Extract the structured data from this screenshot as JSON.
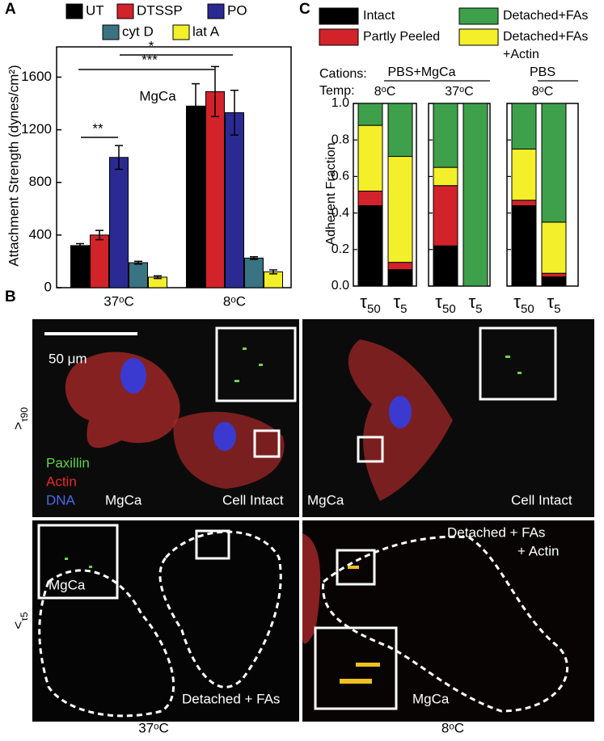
{
  "panel_labels": [
    "A",
    "B",
    "C"
  ],
  "chart_data": [
    {
      "type": "bar",
      "ylabel": "Attachment Strength (dynes/cm²)",
      "categories": [
        "37ᵒC",
        "8ᵒC"
      ],
      "series": [
        {
          "name": "UT",
          "color": "#000000",
          "values": [
            320,
            1380
          ],
          "errors": [
            15,
            170
          ]
        },
        {
          "name": "DTSSP",
          "color": "#d2232a",
          "values": [
            400,
            1490
          ],
          "errors": [
            35,
            190
          ]
        },
        {
          "name": "PO",
          "color": "#2b2a93",
          "values": [
            990,
            1330
          ],
          "errors": [
            90,
            170
          ]
        },
        {
          "name": "cyt D",
          "color": "#3a7381",
          "values": [
            190,
            225
          ],
          "errors": [
            10,
            10
          ]
        },
        {
          "name": "lat A",
          "color": "#f3ef2a",
          "values": [
            80,
            120
          ],
          "errors": [
            10,
            15
          ]
        }
      ],
      "ylim": [
        0,
        1830
      ],
      "yticks": [
        0,
        400,
        800,
        1200,
        1600
      ],
      "annotations": [
        "**",
        "***",
        "*",
        "MgCa"
      ]
    },
    {
      "type": "stacked_bar",
      "ylabel": "Adherent Fraction",
      "cations_label": "Cations:",
      "temp_label": "Temp:",
      "groups": [
        {
          "cations": "PBS+MgCa",
          "temps": [
            "8ᵒC",
            "37ᵒC"
          ]
        },
        {
          "cations": "PBS",
          "temps": [
            "8ᵒC"
          ]
        }
      ],
      "categories": [
        "τ50",
        "τ5",
        "τ50",
        "τ5",
        "τ50",
        "τ5"
      ],
      "series": [
        {
          "name": "Intact",
          "color": "#000000",
          "values": [
            0.44,
            0.09,
            0.22,
            0,
            0.44,
            0.05
          ]
        },
        {
          "name": "Partly Peeled",
          "color": "#d2232a",
          "values": [
            0.08,
            0.04,
            0.33,
            0,
            0.03,
            0.02
          ]
        },
        {
          "name": "Detached+FAs+Actin",
          "color": "#f3ef2a",
          "values": [
            0.36,
            0.58,
            0.1,
            0,
            0.28,
            0.28
          ]
        },
        {
          "name": "Detached+FAs",
          "color": "#3ea04a",
          "values": [
            0.12,
            0.29,
            0.35,
            1,
            0.25,
            0.65
          ]
        }
      ],
      "ylim": [
        0,
        1
      ],
      "yticks": [
        {
          "value": 0,
          "label": "0.0"
        },
        0.2,
        0.4,
        0.6,
        0.8,
        {
          "value": 1,
          "label": "1.0"
        }
      ]
    }
  ],
  "micrographs": {
    "scale_bar": "50 μm",
    "rows": [
      ">τ90",
      "<τ5"
    ],
    "columns": [
      "37ᵒC",
      "8ᵒC"
    ],
    "stains": [
      "Paxillin",
      "Actin",
      "DNA"
    ],
    "top_left": {
      "condition": "MgCa",
      "state": "Cell Intact"
    },
    "top_right": {
      "condition": "MgCa",
      "state": "Cell Intact"
    },
    "bottom_left": {
      "condition": "MgCa",
      "state": "Detached + FAs"
    },
    "bottom_right": {
      "condition": "MgCa",
      "state_line1": "Detached + FAs",
      "state_line2": "+ Actin"
    }
  }
}
